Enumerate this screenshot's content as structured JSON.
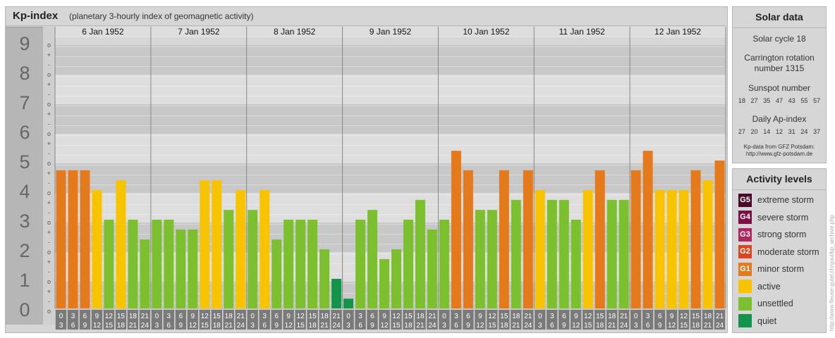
{
  "header": {
    "title": "Kp-index",
    "subtitle": "(planetary 3-hourly index of geomagnetic activity)"
  },
  "chart_data": {
    "type": "bar",
    "title": "Kp-index",
    "subtitle": "(planetary 3-hourly index of geomagnetic activity)",
    "ylim": [
      0,
      9
    ],
    "y_ticks": [
      "0",
      "1",
      "2",
      "3",
      "4",
      "5",
      "6",
      "7",
      "8",
      "9"
    ],
    "y_minor_ticks": [
      "o",
      "+",
      "-",
      "o",
      "+",
      "-",
      "o",
      "+",
      "-",
      "o",
      "+",
      "-",
      "o",
      "+",
      "-",
      "o",
      "+",
      "-",
      "o",
      "+",
      "-",
      "o",
      "+",
      "-",
      "o",
      "+",
      "-",
      "o"
    ],
    "days": [
      {
        "label": "6 Jan 1952",
        "values": [
          4.67,
          4.67,
          4.67,
          4.0,
          3.0,
          4.33,
          3.0,
          2.33
        ]
      },
      {
        "label": "7 Jan 1952",
        "values": [
          3.0,
          3.0,
          2.67,
          2.67,
          4.33,
          4.33,
          3.33,
          4.0
        ]
      },
      {
        "label": "8 Jan 1952",
        "values": [
          3.33,
          4.0,
          2.33,
          3.0,
          3.0,
          3.0,
          2.0,
          1.0
        ]
      },
      {
        "label": "9 Jan 1952",
        "values": [
          0.33,
          3.0,
          3.33,
          1.67,
          2.0,
          3.0,
          3.67,
          2.67
        ]
      },
      {
        "label": "10 Jan 1952",
        "values": [
          3.0,
          5.33,
          4.67,
          3.33,
          3.33,
          4.67,
          3.67,
          4.67
        ]
      },
      {
        "label": "11 Jan 1952",
        "values": [
          4.0,
          3.67,
          3.67,
          3.0,
          4.0,
          4.67,
          3.67,
          3.67
        ]
      },
      {
        "label": "12 Jan 1952",
        "values": [
          4.67,
          5.33,
          4.0,
          4.0,
          4.0,
          4.67,
          4.33,
          5.0
        ]
      }
    ],
    "interval_start_labels": [
      "0",
      "3",
      "6",
      "9",
      "12",
      "15",
      "18",
      "21"
    ],
    "interval_end_labels": [
      "3",
      "6",
      "9",
      "12",
      "15",
      "18",
      "21",
      "24"
    ],
    "grid": true,
    "colors": {
      "quiet": "#14934a",
      "unsettled": "#7cbf2f",
      "active": "#f8c300",
      "minor": "#e47a1c",
      "moderate": "#d9461f",
      "strong": "#b0265e",
      "severe": "#7a1046",
      "extreme": "#4a0a2a",
      "band_dark": "#c8c8c8",
      "band_light": "#dedede",
      "axis_bg": "#b6b6b6",
      "axis_text": "#666666",
      "time_cell": "#7a7a7a"
    }
  },
  "solar_data": {
    "heading": "Solar data",
    "cycle": "Solar cycle 18",
    "carrington_line1": "Carrington rotation",
    "carrington_line2": "number 1315",
    "sunspot_heading": "Sunspot number",
    "sunspot_values": [
      "18",
      "27",
      "35",
      "47",
      "43",
      "55",
      "57"
    ],
    "ap_heading": "Daily Ap-index",
    "ap_values": [
      "27",
      "20",
      "14",
      "12",
      "31",
      "24",
      "37"
    ],
    "source_line1": "Kp-data from GFZ Potsdam:",
    "source_line2": "http://www.gfz-potsdam.de"
  },
  "activity_levels": {
    "heading": "Activity levels",
    "items": [
      {
        "badge": "G5",
        "label": "extreme storm",
        "color": "#4a0a2a"
      },
      {
        "badge": "G4",
        "label": "severe storm",
        "color": "#7a1046"
      },
      {
        "badge": "G3",
        "label": "strong storm",
        "color": "#b0265e"
      },
      {
        "badge": "G2",
        "label": "moderate storm",
        "color": "#d9461f"
      },
      {
        "badge": "G1",
        "label": "minor storm",
        "color": "#e47a1c"
      },
      {
        "badge": "",
        "label": "active",
        "color": "#f8c300"
      },
      {
        "badge": "",
        "label": "unsettled",
        "color": "#7cbf2f"
      },
      {
        "badge": "",
        "label": "quiet",
        "color": "#14934a"
      }
    ]
  },
  "credit": "http://www.fleuse-gutel.ch/goul/kp_archive.php"
}
